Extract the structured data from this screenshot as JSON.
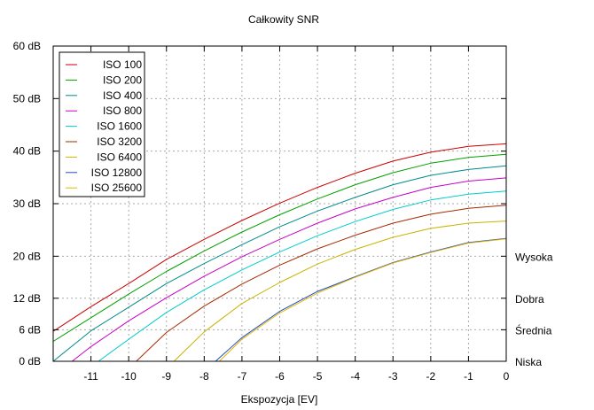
{
  "chart_data": {
    "type": "line",
    "title": "Całkowity SNR",
    "xlabel": "Ekspozycja [EV]",
    "ylabel": "",
    "xlim": [
      -12,
      0
    ],
    "ylim": [
      0,
      60
    ],
    "x_ticks": [
      -11,
      -10,
      -9,
      -8,
      -7,
      -6,
      -5,
      -4,
      -3,
      -2,
      -1,
      0
    ],
    "x_tick_labels": [
      "-11",
      "-10",
      "-9",
      "-8",
      "-7",
      "-6",
      "-5",
      "-4",
      "-3",
      "-2",
      "-1",
      "0"
    ],
    "y_ticks": [
      0,
      6,
      12,
      20,
      30,
      40,
      50,
      60
    ],
    "y_tick_labels": [
      "0 dB",
      "6 dB",
      "12 dB",
      "20 dB",
      "30 dB",
      "40 dB",
      "50 dB",
      "60 dB"
    ],
    "right_labels": [
      {
        "y": 20,
        "label": "Wysoka"
      },
      {
        "y": 12,
        "label": "Dobra"
      },
      {
        "y": 6,
        "label": "Średnia"
      },
      {
        "y": 0,
        "label": "Niska"
      }
    ],
    "grid": true,
    "legend_position": "top-left",
    "series": [
      {
        "name": "ISO 100",
        "color": "#cc0000",
        "x": [
          -12,
          -11,
          -10,
          -9,
          -8,
          -7,
          -6,
          -5,
          -4,
          -3,
          -2,
          -1,
          0
        ],
        "y": [
          5.7,
          10.4,
          14.8,
          19.4,
          23.2,
          26.8,
          30.1,
          33.1,
          35.8,
          38.1,
          39.8,
          40.9,
          41.4
        ]
      },
      {
        "name": "ISO 200",
        "color": "#00a000",
        "x": [
          -12,
          -11,
          -10,
          -9,
          -8,
          -7,
          -6,
          -5,
          -4,
          -3,
          -2,
          -1,
          0
        ],
        "y": [
          3.8,
          8.3,
          12.8,
          17.1,
          21.0,
          24.6,
          27.9,
          30.9,
          33.6,
          35.9,
          37.7,
          38.8,
          39.4
        ]
      },
      {
        "name": "ISO 400",
        "color": "#008b8b",
        "x": [
          -12,
          -11,
          -10,
          -9,
          -8,
          -7,
          -6,
          -5,
          -4,
          -3,
          -2,
          -1,
          0
        ],
        "y": [
          0.0,
          5.8,
          10.3,
          14.8,
          18.6,
          22.2,
          25.6,
          28.6,
          31.2,
          33.6,
          35.4,
          36.5,
          37.2
        ]
      },
      {
        "name": "ISO 800",
        "color": "#c800c8",
        "x": [
          -11.5,
          -11,
          -10,
          -9,
          -8,
          -7,
          -6,
          -5,
          -4,
          -3,
          -2,
          -1,
          0
        ],
        "y": [
          0.0,
          2.8,
          7.7,
          12.1,
          16.2,
          19.9,
          23.2,
          26.3,
          29.0,
          31.2,
          33.1,
          34.3,
          34.9
        ]
      },
      {
        "name": "ISO 1600",
        "color": "#00cccc",
        "x": [
          -10.8,
          -10,
          -9,
          -8,
          -7,
          -6,
          -5,
          -4,
          -3,
          -2,
          -1,
          0
        ],
        "y": [
          0.0,
          4.2,
          9.3,
          13.6,
          17.4,
          20.8,
          23.9,
          26.6,
          28.9,
          30.7,
          31.8,
          32.4
        ]
      },
      {
        "name": "ISO 3200",
        "color": "#a52a00",
        "x": [
          -9.8,
          -9,
          -8,
          -7,
          -6,
          -5,
          -4,
          -3,
          -2,
          -1,
          0
        ],
        "y": [
          0.0,
          5.5,
          10.5,
          14.7,
          18.3,
          21.4,
          24.0,
          26.3,
          28.0,
          29.1,
          29.7
        ]
      },
      {
        "name": "ISO 6400",
        "color": "#c8b400",
        "x": [
          -8.8,
          -8,
          -7,
          -6,
          -5,
          -4,
          -3,
          -2,
          -1,
          0
        ],
        "y": [
          0.0,
          5.6,
          11.0,
          15.0,
          18.5,
          21.3,
          23.6,
          25.3,
          26.3,
          26.7
        ]
      },
      {
        "name": "ISO 12800",
        "color": "#1a4fc8",
        "x": [
          -7.7,
          -7,
          -6,
          -5,
          -4,
          -3,
          -2,
          -1,
          0
        ],
        "y": [
          0.0,
          4.5,
          9.5,
          13.3,
          16.1,
          18.8,
          20.8,
          22.6,
          23.4
        ]
      },
      {
        "name": "ISO 25600",
        "color": "#e6b400",
        "x": [
          -7.6,
          -7,
          -6,
          -5,
          -4,
          -3,
          -2,
          -1,
          0
        ],
        "y": [
          0.0,
          4.2,
          9.2,
          13.0,
          16.0,
          18.7,
          20.7,
          22.5,
          23.3
        ]
      }
    ]
  }
}
